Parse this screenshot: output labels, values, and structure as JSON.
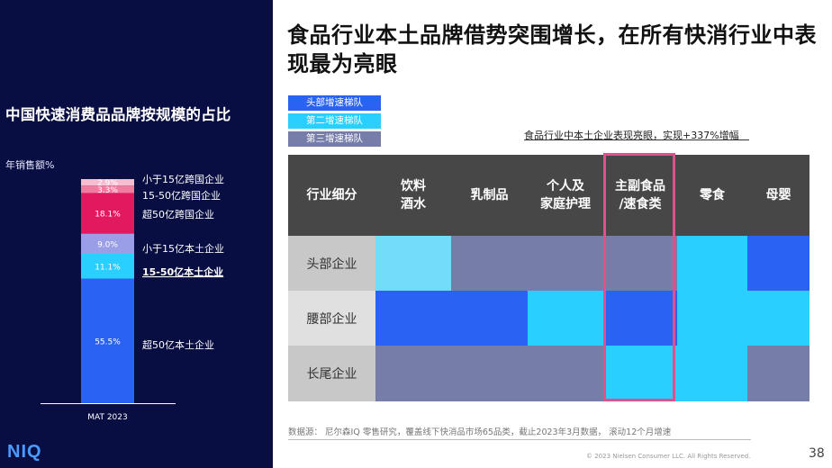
{
  "title": "食品行业本土品牌借势突围增长，在所有快消行业中表现最为亮眼",
  "legend": [
    {
      "label": "头部增速梯队",
      "color": "#2a63f4"
    },
    {
      "label": "第二增速梯队",
      "color": "#29cfff"
    },
    {
      "label": "第三增速梯队",
      "color": "#767da9"
    }
  ],
  "highlight_note": "食品行业中本土企业表现亮眼，实现+337%增幅",
  "left_panel": {
    "title": "中国快速消费品品牌按规模的占比",
    "ylabel": "年销售额%",
    "logo": "NIQ"
  },
  "source": "数据源： 尼尔森IQ 零售研究，覆盖线下快消品市场65品类，截止2023年3月数据， 滚动12个月增速",
  "copyright": "© 2023 Nielsen Consumer LLC. All Rights Reserved.",
  "page_number": "38",
  "chart_data": [
    {
      "type": "bar",
      "stacked": true,
      "title": "中国快速消费品品牌按规模的占比",
      "ylabel": "年销售额%",
      "categories": [
        "MAT 2023"
      ],
      "series": [
        {
          "name": "超50亿本土企业",
          "value": 55.5,
          "label": "55.5%",
          "color": "#2a63f4",
          "bold": false
        },
        {
          "name": "15-50亿本土企业",
          "value": 11.1,
          "label": "11.1%",
          "color": "#29cfff",
          "bold": true
        },
        {
          "name": "小于15亿本土企业",
          "value": 9.0,
          "label": "9.0%",
          "color": "#9a9ee6",
          "bold": false
        },
        {
          "name": "超50亿跨国企业",
          "value": 18.1,
          "label": "18.1%",
          "color": "#e2195e",
          "bold": false
        },
        {
          "name": "15-50亿跨国企业",
          "value": 3.3,
          "label": "3.3%",
          "color": "#f07ca0",
          "bold": false
        },
        {
          "name": "小于15亿跨国企业",
          "value": 2.9,
          "label": "2.9%",
          "color": "#f6bcd0",
          "bold": false
        }
      ]
    },
    {
      "type": "heatmap",
      "corner_label": "行业细分",
      "columns": [
        "饮料\n酒水",
        "乳制品",
        "个人及\n家庭护理",
        "主副食品\n/速食类",
        "零食",
        "母婴"
      ],
      "rows": [
        "头部企业",
        "腰部企业",
        "长尾企业"
      ],
      "highlight_column": 3,
      "tier_colors": {
        "1": "#2a63f4",
        "2": "#29cfff",
        "3": "#767da9",
        "2-light": "#72dcfa"
      },
      "cells": [
        [
          "2-light",
          "3",
          "3",
          "3",
          "2",
          "1"
        ],
        [
          "1",
          "1",
          "2",
          "1",
          "2",
          "2"
        ],
        [
          "3",
          "3",
          "3",
          "2",
          "2",
          "3"
        ]
      ]
    }
  ]
}
